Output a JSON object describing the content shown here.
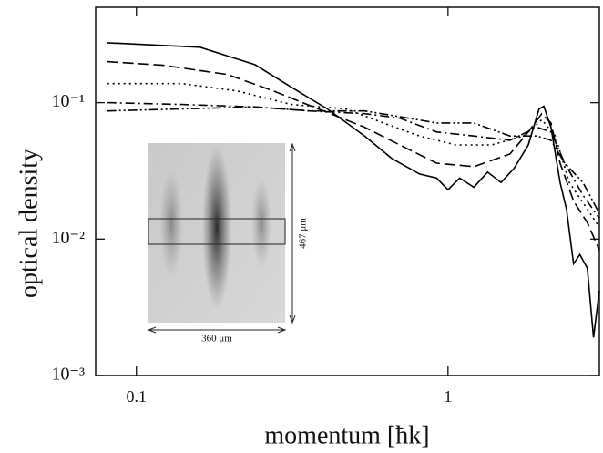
{
  "chart_data": {
    "type": "line",
    "xlabel": "momentum [ħk]",
    "ylabel": "optical density",
    "xscale": "log",
    "yscale": "log",
    "xlim": [
      0.074,
      3.06
    ],
    "ylim": [
      0.001,
      0.5
    ],
    "xticks": [
      0.1,
      1
    ],
    "yticks": [
      {
        "value": 0.1,
        "label": "10⁻¹"
      },
      {
        "value": 0.01,
        "label": "10⁻²"
      },
      {
        "value": 0.001,
        "label": "10⁻³"
      }
    ],
    "annotations": [
      "467 μm",
      "360 μm"
    ],
    "series": [
      {
        "color": "#000",
        "dash": "solid",
        "x": [
          0.0806,
          0.16,
          0.24,
          0.314,
          0.41,
          0.54,
          0.66,
          0.81,
          0.92,
          1.0,
          1.09,
          1.21,
          1.34,
          1.48,
          1.63,
          1.81,
          1.96,
          2.03,
          2.14,
          2.29,
          2.4,
          2.53,
          2.65,
          2.8,
          2.93,
          3.06
        ],
        "values": [
          0.275,
          0.255,
          0.19,
          0.13,
          0.09,
          0.057,
          0.039,
          0.03,
          0.028,
          0.023,
          0.028,
          0.024,
          0.031,
          0.026,
          0.033,
          0.049,
          0.09,
          0.094,
          0.066,
          0.026,
          0.0166,
          0.0066,
          0.0077,
          0.0061,
          0.0019,
          0.0042
        ]
      },
      {
        "color": "#000",
        "dash": "dashed",
        "x": [
          0.0806,
          0.122,
          0.196,
          0.275,
          0.384,
          0.54,
          0.7,
          0.92,
          1.21,
          1.58,
          1.81,
          2.0,
          2.14,
          2.29,
          2.53,
          2.8,
          3.06
        ],
        "values": [
          0.2,
          0.188,
          0.161,
          0.122,
          0.09,
          0.066,
          0.049,
          0.036,
          0.034,
          0.042,
          0.061,
          0.083,
          0.071,
          0.036,
          0.019,
          0.0132,
          0.0083
        ]
      },
      {
        "color": "#000",
        "dash": "dotted",
        "x": [
          0.0806,
          0.14,
          0.21,
          0.314,
          0.47,
          0.62,
          0.81,
          1.06,
          1.38,
          1.75,
          2.0,
          2.21,
          2.45,
          2.8,
          3.06
        ],
        "values": [
          0.138,
          0.138,
          0.122,
          0.097,
          0.09,
          0.071,
          0.057,
          0.049,
          0.049,
          0.057,
          0.075,
          0.057,
          0.026,
          0.0166,
          0.0122
        ]
      },
      {
        "color": "#000",
        "dash": "dashdot",
        "x": [
          0.0806,
          0.14,
          0.24,
          0.36,
          0.54,
          0.7,
          0.92,
          1.21,
          1.58,
          1.93,
          2.14,
          2.37,
          2.71,
          3.06
        ],
        "values": [
          0.1,
          0.097,
          0.093,
          0.087,
          0.083,
          0.077,
          0.061,
          0.057,
          0.053,
          0.066,
          0.061,
          0.036,
          0.021,
          0.0142
        ]
      },
      {
        "color": "#000",
        "dash": "dashdotdot",
        "x": [
          0.0806,
          0.14,
          0.24,
          0.36,
          0.54,
          0.7,
          0.92,
          1.21,
          1.58,
          1.93,
          2.14,
          2.37,
          2.71,
          3.06
        ],
        "values": [
          0.087,
          0.09,
          0.093,
          0.087,
          0.087,
          0.079,
          0.071,
          0.071,
          0.057,
          0.057,
          0.053,
          0.036,
          0.026,
          0.0154
        ]
      }
    ]
  }
}
